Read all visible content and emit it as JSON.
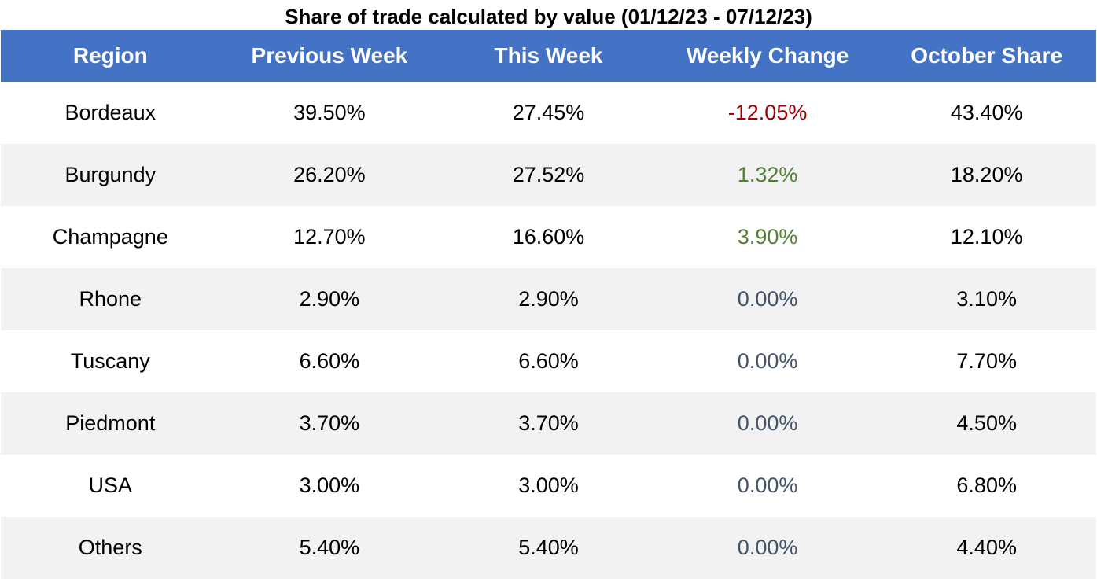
{
  "chart_data": {
    "type": "table",
    "title": "Share of trade calculated by value (01/12/23 - 07/12/23)",
    "columns": [
      "Region",
      "Previous Week",
      "This Week",
      "Weekly Change",
      "October Share"
    ],
    "rows": [
      {
        "region": "Bordeaux",
        "previous_week": "39.50%",
        "this_week": "27.45%",
        "weekly_change": "-12.05%",
        "change_sign": "neg",
        "october_share": "43.40%"
      },
      {
        "region": "Burgundy",
        "previous_week": "26.20%",
        "this_week": "27.52%",
        "weekly_change": "1.32%",
        "change_sign": "pos",
        "october_share": "18.20%"
      },
      {
        "region": "Champagne",
        "previous_week": "12.70%",
        "this_week": "16.60%",
        "weekly_change": "3.90%",
        "change_sign": "pos",
        "october_share": "12.10%"
      },
      {
        "region": "Rhone",
        "previous_week": "2.90%",
        "this_week": "2.90%",
        "weekly_change": "0.00%",
        "change_sign": "zero",
        "october_share": "3.10%"
      },
      {
        "region": "Tuscany",
        "previous_week": "6.60%",
        "this_week": "6.60%",
        "weekly_change": "0.00%",
        "change_sign": "zero",
        "october_share": "7.70%"
      },
      {
        "region": "Piedmont",
        "previous_week": "3.70%",
        "this_week": "3.70%",
        "weekly_change": "0.00%",
        "change_sign": "zero",
        "october_share": "4.50%"
      },
      {
        "region": "USA",
        "previous_week": "3.00%",
        "this_week": "3.00%",
        "weekly_change": "0.00%",
        "change_sign": "zero",
        "october_share": "6.80%"
      },
      {
        "region": "Others",
        "previous_week": "5.40%",
        "this_week": "5.40%",
        "weekly_change": "0.00%",
        "change_sign": "zero",
        "october_share": "4.40%"
      }
    ],
    "colors": {
      "header_background": "#4472c4",
      "header_text": "#ffffff",
      "row_alt_background": "#f2f2f2",
      "positive_change": "#548235",
      "negative_change": "#9c0006",
      "zero_change": "#44546a"
    }
  }
}
